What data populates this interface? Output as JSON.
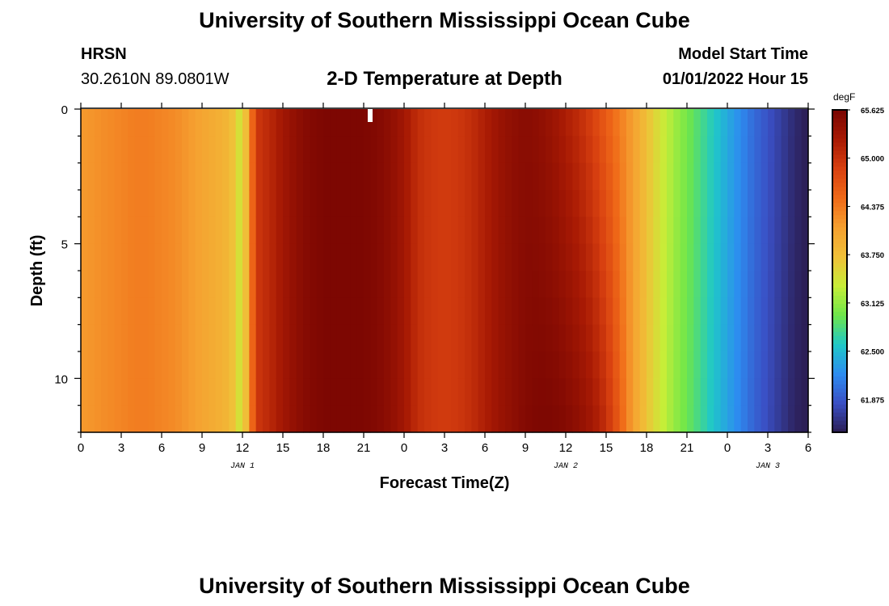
{
  "page": {
    "title_top": "University of Southern Mississippi Ocean Cube",
    "title_bottom": "University of Southern Mississippi Ocean Cube",
    "station": "HRSN",
    "coords": "30.2610N  89.0801W",
    "subtitle": "2-D Temperature at Depth",
    "start_label": "Model Start Time",
    "start_value": "01/01/2022 Hour 15"
  },
  "chart_data": {
    "type": "heatmap",
    "title": "2-D Temperature at Depth",
    "xlabel": "Forecast Time(Z)",
    "ylabel": "Depth (ft)",
    "x_ticks": [
      "0",
      "3",
      "6",
      "9",
      "12",
      "15",
      "18",
      "21",
      "0",
      "3",
      "6",
      "9",
      "12",
      "15",
      "18",
      "21",
      "0",
      "3",
      "6"
    ],
    "x_range_hours": [
      0,
      54
    ],
    "date_labels": [
      {
        "text": "JAN 1",
        "hour": 12
      },
      {
        "text": "JAN 2",
        "hour": 36
      },
      {
        "text": "JAN 3",
        "hour": 51
      }
    ],
    "y_ticks": [
      0,
      5,
      10
    ],
    "y_range": [
      0,
      12
    ],
    "y_inverted": true,
    "colorbar": {
      "unit": "degF",
      "min": 61.45,
      "max": 65.625,
      "tick_labels": [
        "65.625",
        "65.000",
        "64.375",
        "63.750",
        "63.125",
        "62.500",
        "61.875"
      ],
      "colors": [
        "#2b1d52",
        "#3a4fc4",
        "#2d8cf0",
        "#1fc8c8",
        "#6ee64a",
        "#c7ee38",
        "#f0c038",
        "#f5a030",
        "#f06a18",
        "#d84010",
        "#a81a04",
        "#7a0602"
      ]
    },
    "series_hourly_surface": [
      64.15,
      64.2,
      64.25,
      64.3,
      64.35,
      64.35,
      64.3,
      64.25,
      64.15,
      64.05,
      63.95,
      63.85,
      63.35,
      64.95,
      65.1,
      65.3,
      65.45,
      65.55,
      65.6,
      65.6,
      65.6,
      65.6,
      65.55,
      65.45,
      65.3,
      65.05,
      64.95,
      64.92,
      64.95,
      65.05,
      65.2,
      65.35,
      65.45,
      65.5,
      65.45,
      65.35,
      65.2,
      65.05,
      64.85,
      64.6,
      64.35,
      64.1,
      63.75,
      63.45,
      63.2,
      63.0,
      62.8,
      62.6,
      62.4,
      62.2,
      62.0,
      61.85,
      61.7,
      61.55,
      61.45
    ],
    "series_hourly_bottom": [
      64.15,
      64.2,
      64.25,
      64.3,
      64.35,
      64.35,
      64.3,
      64.25,
      64.15,
      64.05,
      63.95,
      63.85,
      63.35,
      64.95,
      65.1,
      65.3,
      65.45,
      65.55,
      65.6,
      65.6,
      65.6,
      65.6,
      65.55,
      65.45,
      65.3,
      65.05,
      64.95,
      64.92,
      64.95,
      65.05,
      65.2,
      65.35,
      65.45,
      65.55,
      65.6,
      65.6,
      65.55,
      65.45,
      65.3,
      65.05,
      64.6,
      64.1,
      63.7,
      63.4,
      63.15,
      62.95,
      62.75,
      62.55,
      62.35,
      62.15,
      61.95,
      61.8,
      61.65,
      61.5,
      61.45
    ]
  }
}
